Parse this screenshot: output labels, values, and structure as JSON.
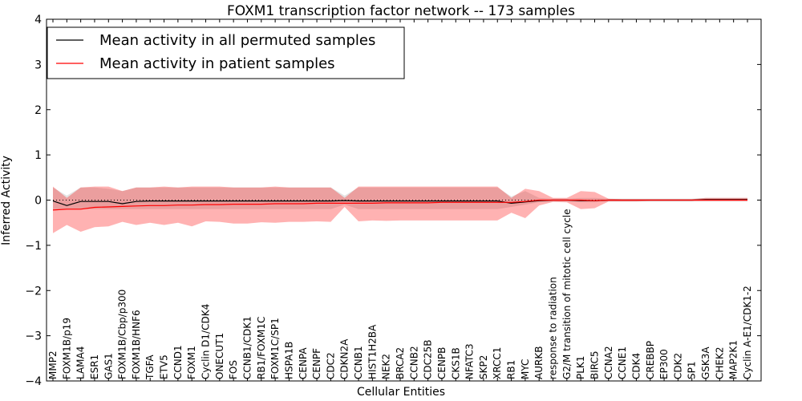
{
  "chart_data": {
    "type": "line",
    "title": "FOXM1 transcription factor network -- 173 samples",
    "xlabel": "Cellular Entities",
    "ylabel": "Inferred Activity",
    "ylim": [
      -4,
      4
    ],
    "yticks": [
      4,
      3,
      2,
      1,
      0,
      -1,
      -2,
      -3,
      -4
    ],
    "ytick_labels": [
      "4",
      "3",
      "2",
      "1",
      "0",
      "−1",
      "−2",
      "−3",
      "−4"
    ],
    "grid": false,
    "legend_position": "top-left",
    "categories": [
      "MMP2",
      "FOXM1B/p19",
      "LAMA4",
      "ESR1",
      "GAS1",
      "FOXM1B/Cbp/p300",
      "FOXM1B/HNF6",
      "TGFA",
      "ETV5",
      "CCND1",
      "FOXM1",
      "Cyclin D1/CDK4",
      "ONECUT1",
      "FOS",
      "CCNB1/CDK1",
      "RB1/FOXM1C",
      "FOXM1C/SP1",
      "HSPA1B",
      "CENPA",
      "CENPF",
      "CDC2",
      "CDKN2A",
      "CCNB1",
      "HIST1H2BA",
      "NEK2",
      "BRCA2",
      "CCNB2",
      "CDC25B",
      "CENPB",
      "CKS1B",
      "NFATC3",
      "SKP2",
      "XRCC1",
      "RB1",
      "MYC",
      "AURKB",
      "response to radiation",
      "G2/M transition of mitotic cell cycle",
      "PLK1",
      "BIRC5",
      "CCNA2",
      "CCNE1",
      "CDK4",
      "CREBBP",
      "EP300",
      "CDK2",
      "SP1",
      "GSK3A",
      "CHEK2",
      "MAP2K1",
      "Cyclin A-E1/CDK1-2"
    ],
    "series": [
      {
        "name": "Mean activity in all permuted samples",
        "color": "#000000",
        "values": [
          -0.02,
          -0.12,
          -0.03,
          -0.03,
          -0.03,
          -0.08,
          -0.03,
          -0.02,
          -0.02,
          -0.02,
          -0.02,
          -0.02,
          -0.02,
          -0.02,
          -0.02,
          -0.02,
          -0.02,
          -0.02,
          -0.02,
          -0.02,
          -0.02,
          -0.01,
          -0.02,
          -0.02,
          -0.02,
          -0.02,
          -0.02,
          -0.02,
          -0.02,
          -0.02,
          -0.02,
          -0.02,
          -0.02,
          -0.07,
          -0.04,
          -0.01,
          0.0,
          0.0,
          -0.01,
          -0.01,
          0.0,
          0.0,
          0.0,
          0.0,
          0.0,
          0.0,
          0.0,
          0.01,
          0.01,
          0.01,
          0.01
        ],
        "lower": [
          -0.2,
          -0.2,
          -0.2,
          -0.2,
          -0.2,
          -0.2,
          -0.2,
          -0.2,
          -0.2,
          -0.2,
          -0.2,
          -0.2,
          -0.2,
          -0.2,
          -0.2,
          -0.2,
          -0.2,
          -0.2,
          -0.2,
          -0.2,
          -0.2,
          -0.1,
          -0.2,
          -0.2,
          -0.2,
          -0.2,
          -0.2,
          -0.2,
          -0.2,
          -0.2,
          -0.2,
          -0.2,
          -0.2,
          -0.15,
          -0.1,
          -0.05,
          -0.03,
          -0.03,
          -0.05,
          -0.05,
          -0.03,
          -0.03,
          -0.03,
          -0.03,
          -0.03,
          -0.03,
          -0.03,
          -0.03,
          -0.03,
          -0.03,
          -0.03
        ],
        "upper": [
          0.28,
          0.1,
          0.28,
          0.28,
          0.25,
          0.2,
          0.28,
          0.28,
          0.28,
          0.28,
          0.28,
          0.28,
          0.28,
          0.28,
          0.28,
          0.28,
          0.28,
          0.28,
          0.28,
          0.28,
          0.28,
          0.1,
          0.28,
          0.28,
          0.28,
          0.28,
          0.28,
          0.28,
          0.28,
          0.28,
          0.28,
          0.28,
          0.28,
          0.08,
          0.2,
          0.05,
          0.03,
          0.03,
          0.05,
          0.05,
          0.03,
          0.03,
          0.03,
          0.03,
          0.03,
          0.03,
          0.03,
          0.05,
          0.05,
          0.05,
          0.05
        ]
      },
      {
        "name": "Mean activity in patient samples",
        "color": "#ff0000",
        "values": [
          -0.22,
          -0.2,
          -0.2,
          -0.16,
          -0.15,
          -0.14,
          -0.13,
          -0.12,
          -0.12,
          -0.11,
          -0.11,
          -0.1,
          -0.1,
          -0.09,
          -0.09,
          -0.09,
          -0.08,
          -0.08,
          -0.08,
          -0.07,
          -0.07,
          -0.07,
          -0.07,
          -0.07,
          -0.06,
          -0.06,
          -0.06,
          -0.06,
          -0.05,
          -0.05,
          -0.05,
          -0.05,
          -0.05,
          -0.05,
          -0.03,
          0.0,
          0.0,
          0.0,
          0.0,
          -0.01,
          0.0,
          0.0,
          0.0,
          0.0,
          0.0,
          0.0,
          0.0,
          0.0,
          0.0,
          0.0,
          0.0
        ],
        "lower": [
          -0.73,
          -0.55,
          -0.7,
          -0.6,
          -0.58,
          -0.48,
          -0.55,
          -0.5,
          -0.55,
          -0.5,
          -0.58,
          -0.47,
          -0.48,
          -0.52,
          -0.52,
          -0.49,
          -0.5,
          -0.48,
          -0.48,
          -0.47,
          -0.48,
          -0.15,
          -0.47,
          -0.45,
          -0.46,
          -0.45,
          -0.45,
          -0.45,
          -0.45,
          -0.45,
          -0.45,
          -0.45,
          -0.45,
          -0.28,
          -0.4,
          -0.12,
          -0.04,
          -0.05,
          -0.2,
          -0.18,
          -0.03,
          -0.03,
          -0.03,
          -0.02,
          -0.02,
          -0.02,
          -0.02,
          -0.02,
          -0.02,
          -0.02,
          -0.02
        ],
        "upper": [
          0.3,
          0.05,
          0.28,
          0.3,
          0.3,
          0.2,
          0.28,
          0.28,
          0.3,
          0.28,
          0.3,
          0.3,
          0.3,
          0.28,
          0.28,
          0.28,
          0.3,
          0.28,
          0.28,
          0.28,
          0.28,
          0.05,
          0.3,
          0.3,
          0.3,
          0.3,
          0.3,
          0.3,
          0.3,
          0.3,
          0.3,
          0.3,
          0.3,
          0.05,
          0.25,
          0.2,
          0.05,
          0.05,
          0.2,
          0.18,
          0.03,
          0.02,
          0.02,
          0.02,
          0.02,
          0.02,
          0.02,
          0.05,
          0.05,
          0.05,
          0.05
        ]
      }
    ]
  }
}
